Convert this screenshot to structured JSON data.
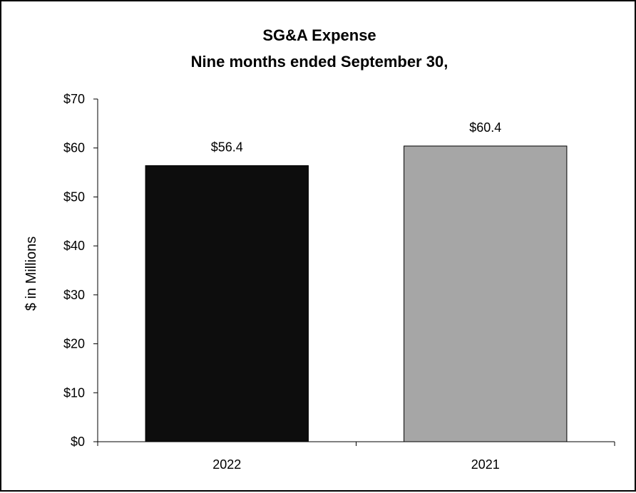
{
  "chart_data": {
    "type": "bar",
    "title": "SG&A Expense",
    "subtitle": "Nine months ended September 30,",
    "categories": [
      "2022",
      "2021"
    ],
    "values": [
      56.4,
      60.4
    ],
    "data_labels": [
      "$56.4",
      "$60.4"
    ],
    "bar_colors": [
      "#0d0d0d",
      "#a6a6a6"
    ],
    "xlabel": "",
    "ylabel": "$ in Millions",
    "ylim": [
      0,
      70
    ],
    "yticks": [
      0,
      10,
      20,
      30,
      40,
      50,
      60,
      70
    ],
    "ytick_labels": [
      "$0",
      "$10",
      "$20",
      "$30",
      "$40",
      "$50",
      "$60",
      "$70"
    ],
    "grid": false,
    "legend": "none"
  }
}
